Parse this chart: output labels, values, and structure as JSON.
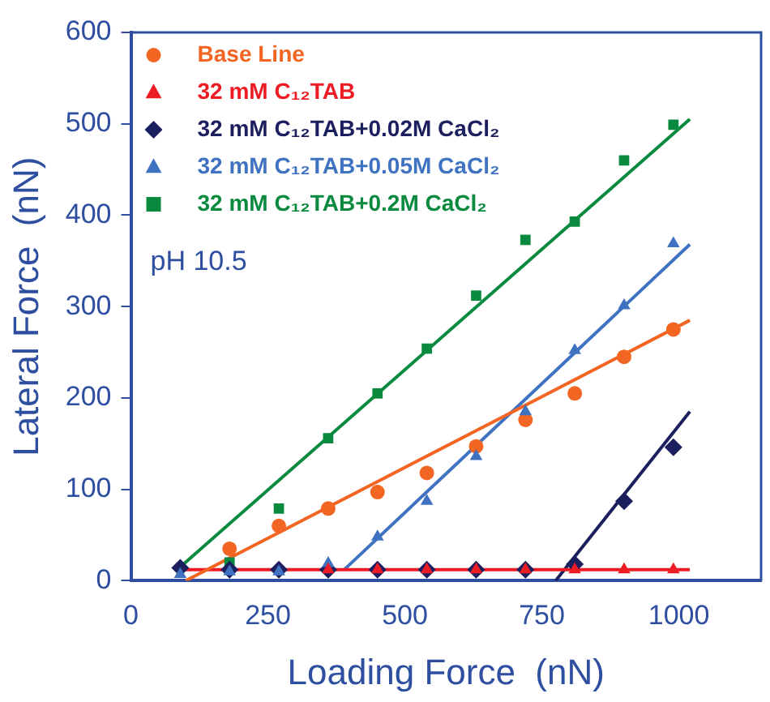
{
  "chart_data": {
    "type": "scatter",
    "xlabel": "Loading Force  (nN)",
    "ylabel": "Lateral Force  (nN)",
    "x": [
      90,
      180,
      270,
      360,
      450,
      540,
      630,
      720,
      810,
      900,
      990
    ],
    "xlim": [
      0,
      1150
    ],
    "xticks": [
      0,
      250,
      500,
      750,
      1000
    ],
    "ylim": [
      0,
      600
    ],
    "yticks": [
      0,
      100,
      200,
      300,
      400,
      500,
      600
    ],
    "grid": false,
    "legend": "top left",
    "annotations": [
      "pH 10.5"
    ],
    "series": [
      {
        "name": "Base Line",
        "color": "#f26522",
        "marker": "circle",
        "values": [
          null,
          35,
          60,
          79,
          97,
          118,
          147,
          176,
          205,
          245,
          275
        ]
      },
      {
        "name": "32 mM C₁₂TAB",
        "color": "#ed1c24",
        "marker": "triangle",
        "values": [
          null,
          null,
          null,
          12,
          12,
          12,
          12,
          12,
          12,
          12,
          12
        ]
      },
      {
        "name": "32 mM C₁₂TAB+0.02M CaCl₂",
        "color": "#1b1f5e",
        "marker": "diamond",
        "values": [
          14,
          12,
          12,
          12,
          12,
          12,
          12,
          12,
          18,
          87,
          146
        ]
      },
      {
        "name": "32 mM C₁₂TAB+0.05M CaCl₂",
        "color": "#3f72c0",
        "marker": "triangle",
        "values": [
          7,
          10,
          10,
          19,
          48,
          87,
          136,
          185,
          252,
          301,
          369
        ]
      },
      {
        "name": "32 mM C₁₂TAB+0.2M CaCl₂",
        "color": "#0a8a3f",
        "marker": "square",
        "values": [
          null,
          20,
          79,
          156,
          205,
          254,
          312,
          373,
          393,
          460,
          499
        ]
      },
      {
        "type": "line",
        "color": "#f26522",
        "marker": "none",
        "x": [
          100,
          1020
        ],
        "values": [
          0,
          285
        ]
      },
      {
        "type": "line",
        "color": "#ed1c24",
        "marker": "none",
        "x": [
          90,
          1020
        ],
        "values": [
          12,
          12
        ]
      },
      {
        "type": "line",
        "color": "#1b1f5e",
        "marker": "none",
        "x": [
          775,
          1020
        ],
        "values": [
          0,
          185
        ]
      },
      {
        "type": "line",
        "color": "#3f72c0",
        "marker": "none",
        "x": [
          389,
          1020
        ],
        "values": [
          12,
          368
        ]
      },
      {
        "type": "line",
        "color": "#0a8a3f",
        "marker": "none",
        "x": [
          90,
          1020
        ],
        "values": [
          15,
          505
        ]
      }
    ]
  }
}
